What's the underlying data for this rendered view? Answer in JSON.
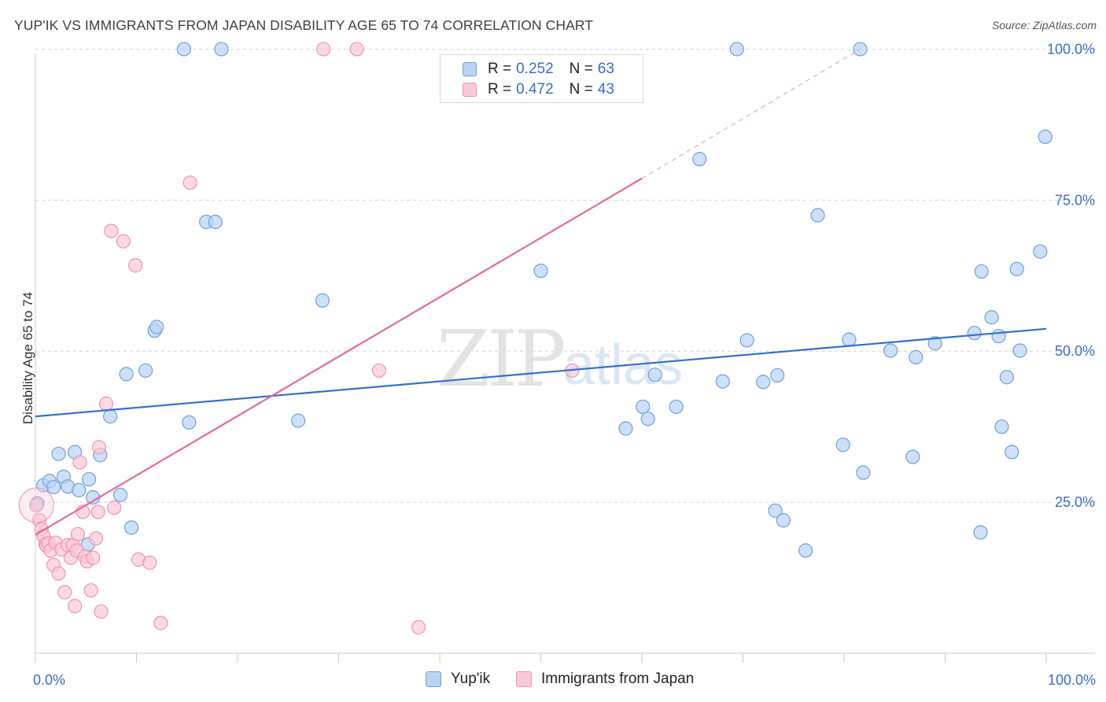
{
  "title": "YUP'IK VS IMMIGRANTS FROM JAPAN DISABILITY AGE 65 TO 74 CORRELATION CHART",
  "source": "Source: ZipAtlas.com",
  "watermark": {
    "zip": "ZIP",
    "atlas": "atlas"
  },
  "colors": {
    "blue_fill": "#b9d3f3",
    "blue_stroke": "#6f9fdc",
    "blue_line": "#2f6fd0",
    "pink_fill": "#f9c9d8",
    "pink_stroke": "#ef93b0",
    "pink_line": "#e46a93",
    "grid": "#d6d6d6",
    "axis": "#cccccc",
    "tick_label": "#3a6cc9"
  },
  "legend_top": {
    "rows": [
      {
        "r_label": "R =",
        "r_value": "0.252",
        "n_label": "N =",
        "n_value": "63",
        "series": "blue"
      },
      {
        "r_label": "R =",
        "r_value": "0.472",
        "n_label": "N =",
        "n_value": "43",
        "series": "pink"
      }
    ]
  },
  "legend_bottom": [
    {
      "label": "Yup'ik",
      "series": "blue"
    },
    {
      "label": "Immigrants from Japan",
      "series": "pink"
    }
  ],
  "chart_data": {
    "type": "scatter",
    "title": "YUP'IK VS IMMIGRANTS FROM JAPAN DISABILITY AGE 65 TO 74 CORRELATION CHART",
    "xlabel": "",
    "ylabel": "Disability Age 65 to 74",
    "xlim": [
      0,
      100
    ],
    "ylim": [
      0,
      105
    ],
    "x_tick_labels": [
      "0.0%",
      "100.0%"
    ],
    "y_ticks": [
      25,
      50,
      75,
      100
    ],
    "y_tick_labels": [
      "25.0%",
      "50.0%",
      "75.0%",
      "100.0%"
    ],
    "grid": true,
    "series": [
      {
        "name": "Yup'ik",
        "color": "blue",
        "r": 0.252,
        "n": 63,
        "trend": {
          "x": [
            0,
            100
          ],
          "y": [
            39.2,
            53.7
          ],
          "dashed_from": null
        },
        "points": [
          [
            0.2,
            24.8
          ],
          [
            0.8,
            27.8
          ],
          [
            1.4,
            28.5
          ],
          [
            1.8,
            27.5
          ],
          [
            2.3,
            33.0
          ],
          [
            2.8,
            29.2
          ],
          [
            3.2,
            27.6
          ],
          [
            3.9,
            33.3
          ],
          [
            4.3,
            27.0
          ],
          [
            5.3,
            28.8
          ],
          [
            5.7,
            25.8
          ],
          [
            5.2,
            18.0
          ],
          [
            6.4,
            32.8
          ],
          [
            7.4,
            39.2
          ],
          [
            8.4,
            26.2
          ],
          [
            9.0,
            46.2
          ],
          [
            9.5,
            20.8
          ],
          [
            10.9,
            46.8
          ],
          [
            11.8,
            53.4
          ],
          [
            12.0,
            54.0
          ],
          [
            14.7,
            100.0
          ],
          [
            15.2,
            38.2
          ],
          [
            16.9,
            71.4
          ],
          [
            17.8,
            71.4
          ],
          [
            18.4,
            100.0
          ],
          [
            26.0,
            38.5
          ],
          [
            28.4,
            58.4
          ],
          [
            50.0,
            63.3
          ],
          [
            58.4,
            37.2
          ],
          [
            60.1,
            40.8
          ],
          [
            60.6,
            38.8
          ],
          [
            61.3,
            46.1
          ],
          [
            63.4,
            40.8
          ],
          [
            65.7,
            81.8
          ],
          [
            68.0,
            45.0
          ],
          [
            69.4,
            100.0
          ],
          [
            70.4,
            51.8
          ],
          [
            72.0,
            44.9
          ],
          [
            73.2,
            23.6
          ],
          [
            73.4,
            46.0
          ],
          [
            74.0,
            22.0
          ],
          [
            76.2,
            17.0
          ],
          [
            77.4,
            72.5
          ],
          [
            79.9,
            34.5
          ],
          [
            80.5,
            51.9
          ],
          [
            81.6,
            100.0
          ],
          [
            81.9,
            29.9
          ],
          [
            84.6,
            50.1
          ],
          [
            86.8,
            32.5
          ],
          [
            87.1,
            49.0
          ],
          [
            89.0,
            51.3
          ],
          [
            92.9,
            53.0
          ],
          [
            93.6,
            63.2
          ],
          [
            93.5,
            20.0
          ],
          [
            94.6,
            55.6
          ],
          [
            95.3,
            52.5
          ],
          [
            95.6,
            37.5
          ],
          [
            96.1,
            45.7
          ],
          [
            96.6,
            33.3
          ],
          [
            97.1,
            63.6
          ],
          [
            97.4,
            50.1
          ],
          [
            99.4,
            66.5
          ],
          [
            99.9,
            85.5
          ]
        ]
      },
      {
        "name": "Immigrants from Japan",
        "color": "pink",
        "r": 0.472,
        "n": 43,
        "trend": {
          "x": [
            0,
            60
          ],
          "y": [
            19.6,
            78.6
          ],
          "dashed_to": [
            81.6,
            100.0
          ]
        },
        "points": [
          [
            0.1,
            24.5
          ],
          [
            0.4,
            22.0
          ],
          [
            0.6,
            20.5
          ],
          [
            0.8,
            19.4
          ],
          [
            1.0,
            18.1
          ],
          [
            1.1,
            17.8
          ],
          [
            1.3,
            18.2
          ],
          [
            1.5,
            17.0
          ],
          [
            1.8,
            14.6
          ],
          [
            2.0,
            18.3
          ],
          [
            2.3,
            13.2
          ],
          [
            2.6,
            17.2
          ],
          [
            2.9,
            10.1
          ],
          [
            3.2,
            17.9
          ],
          [
            3.5,
            15.8
          ],
          [
            3.7,
            17.9
          ],
          [
            3.9,
            7.8
          ],
          [
            4.1,
            17.0
          ],
          [
            4.2,
            19.7
          ],
          [
            4.4,
            31.6
          ],
          [
            4.7,
            23.4
          ],
          [
            4.9,
            16.0
          ],
          [
            5.1,
            15.2
          ],
          [
            5.5,
            10.4
          ],
          [
            5.7,
            15.8
          ],
          [
            6.0,
            19.0
          ],
          [
            6.2,
            23.4
          ],
          [
            6.3,
            34.1
          ],
          [
            6.5,
            6.9
          ],
          [
            7.0,
            41.3
          ],
          [
            7.5,
            69.9
          ],
          [
            7.8,
            24.1
          ],
          [
            8.7,
            68.2
          ],
          [
            9.9,
            64.2
          ],
          [
            10.2,
            15.5
          ],
          [
            11.3,
            15.0
          ],
          [
            12.4,
            5.0
          ],
          [
            15.3,
            77.9
          ],
          [
            28.5,
            100.0
          ],
          [
            31.8,
            100.0
          ],
          [
            34.0,
            46.8
          ],
          [
            37.9,
            4.3
          ],
          [
            53.1,
            46.8
          ]
        ]
      }
    ]
  }
}
